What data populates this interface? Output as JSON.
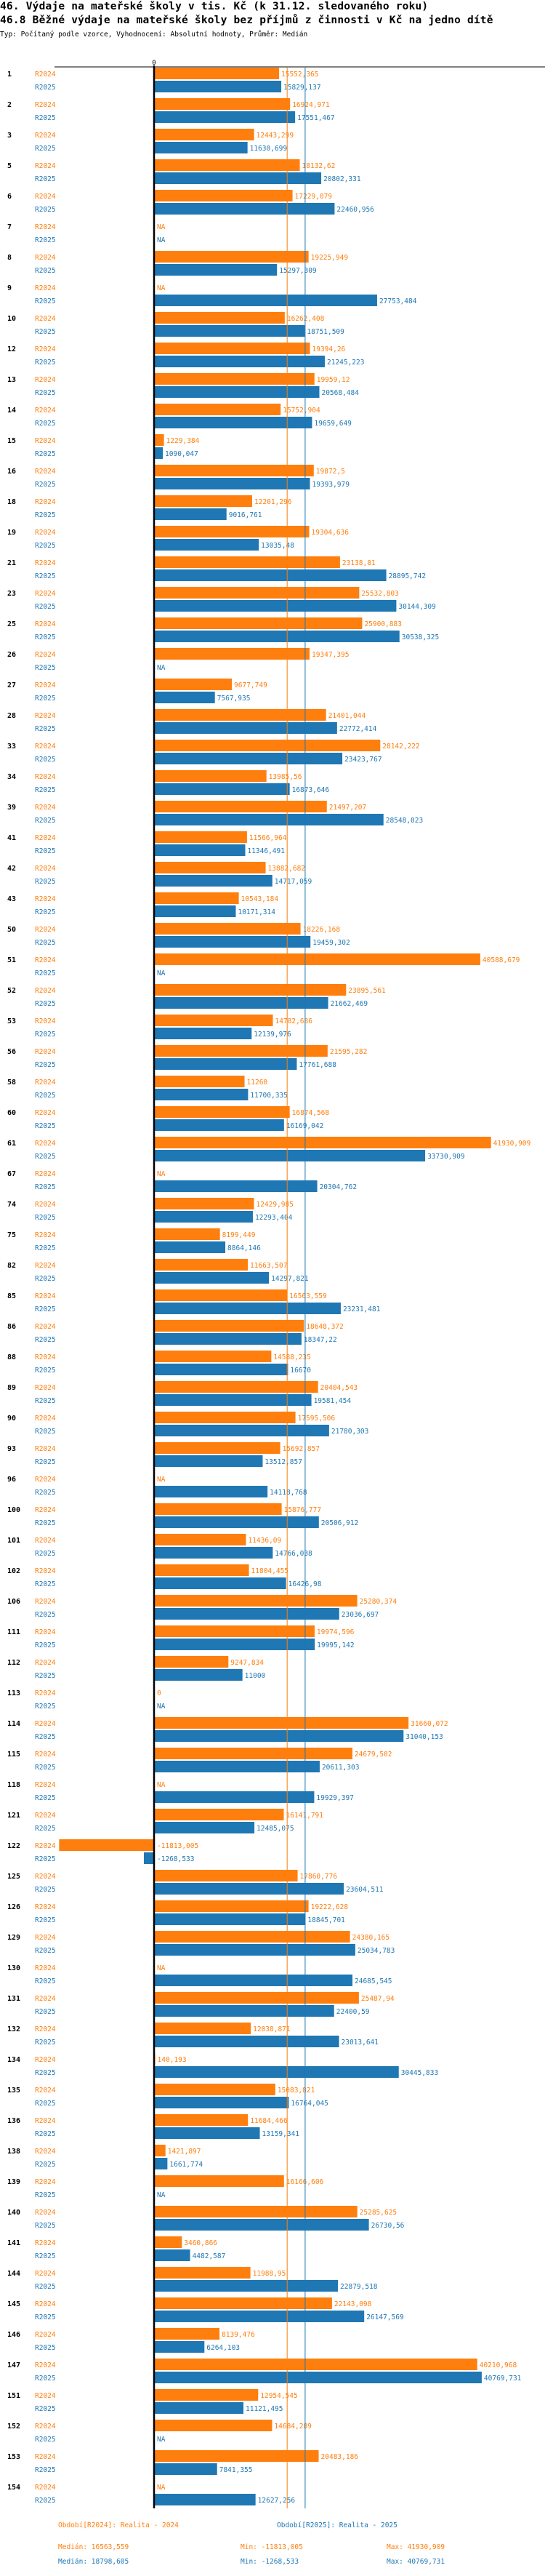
{
  "title": "46. Výdaje na mateřské školy v tis. Kč (k 31.12. sledovaného roku)",
  "subtitle_main": "46.8 Běžné výdaje na mateřské školy bez příjmů z činnosti v Kč na jedno dítě",
  "meta": "Typ: Počítaný podle vzorce, Vyhodnocení: Absolutní hodnoty, Průměr: Medián",
  "colors": {
    "R2024": "#ff7f0e",
    "R2025": "#1f77b4"
  },
  "chart_data": {
    "type": "bar",
    "orientation": "horizontal",
    "title": "46.8 Běžné výdaje na mateřské školy bez příjmů z činnosti v Kč na jedno dítě",
    "xlabel": "",
    "ylabel": "",
    "axis_tick_label": "0",
    "xlim": [
      -11813.005,
      41930.909
    ],
    "grid": false,
    "legend": "bottom",
    "series_names": [
      "R2024",
      "R2025"
    ],
    "categories": [
      "1",
      "2",
      "3",
      "5",
      "6",
      "7",
      "8",
      "9",
      "10",
      "12",
      "13",
      "14",
      "15",
      "16",
      "18",
      "19",
      "21",
      "23",
      "25",
      "26",
      "27",
      "28",
      "33",
      "34",
      "39",
      "41",
      "42",
      "43",
      "50",
      "51",
      "52",
      "53",
      "56",
      "58",
      "60",
      "61",
      "67",
      "74",
      "75",
      "82",
      "85",
      "86",
      "88",
      "89",
      "90",
      "93",
      "96",
      "100",
      "101",
      "102",
      "106",
      "111",
      "112",
      "113",
      "114",
      "115",
      "118",
      "121",
      "122",
      "125",
      "126",
      "129",
      "130",
      "131",
      "132",
      "134",
      "135",
      "136",
      "138",
      "139",
      "140",
      "141",
      "144",
      "145",
      "146",
      "147",
      "151",
      "152",
      "153",
      "154"
    ],
    "series": [
      {
        "name": "R2024",
        "values": [
          "15552,365",
          "16924,971",
          "12443,299",
          "18132,62",
          "17229,079",
          "NA",
          "19225,949",
          "NA",
          "16262,408",
          "19394,26",
          "19959,12",
          "15752,904",
          "1229,384",
          "19872,5",
          "12201,296",
          "19304,636",
          "23138,81",
          "25532,803",
          "25900,883",
          "19347,395",
          "9677,749",
          "21401,044",
          "28142,222",
          "13985,56",
          "21497,207",
          "11566,964",
          "13882,682",
          "10543,184",
          "18226,168",
          "40588,679",
          "23895,561",
          "14782,686",
          "21595,282",
          "11260",
          "16874,568",
          "41930,909",
          "NA",
          "12429,985",
          "8199,449",
          "11663,507",
          "16563,559",
          "18648,372",
          "14588,235",
          "20404,543",
          "17595,506",
          "15692,857",
          "NA",
          "15876,777",
          "11436,09",
          "11804,455",
          "25280,374",
          "19974,596",
          "9247,834",
          "0",
          "31660,072",
          "24679,502",
          "NA",
          "16141,791",
          "-11813,005",
          "17860,776",
          "19222,628",
          "24380,165",
          "NA",
          "25487,94",
          "12038,871",
          "140,193",
          "15083,821",
          "11684,466",
          "1421,897",
          "16166,606",
          "25285,625",
          "3460,866",
          "11988,95",
          "22143,098",
          "8139,476",
          "40210,968",
          "12954,545",
          "14684,289",
          "20483,186",
          "NA"
        ]
      },
      {
        "name": "R2025",
        "values": [
          "15829,137",
          "17551,467",
          "11630,699",
          "20802,331",
          "22460,956",
          "NA",
          "15297,309",
          "27753,484",
          "18751,509",
          "21245,223",
          "20568,484",
          "19659,649",
          "1090,047",
          "19393,979",
          "9016,761",
          "13035,48",
          "28895,742",
          "30144,309",
          "30538,325",
          "NA",
          "7567,935",
          "22772,414",
          "23423,767",
          "16873,646",
          "28548,023",
          "11346,491",
          "14717,059",
          "10171,314",
          "19459,302",
          "NA",
          "21662,469",
          "12139,976",
          "17761,688",
          "11700,335",
          "16169,042",
          "33730,909",
          "20304,762",
          "12293,404",
          "8864,146",
          "14297,821",
          "23231,481",
          "18347,22",
          "16670",
          "19581,454",
          "21780,303",
          "13512,857",
          "14118,768",
          "20506,912",
          "14766,038",
          "16426,98",
          "23036,697",
          "19995,142",
          "11000",
          "NA",
          "31040,153",
          "20611,303",
          "19929,397",
          "12485,075",
          "-1268,533",
          "23604,511",
          "18845,701",
          "25034,783",
          "24685,545",
          "22400,59",
          "23013,641",
          "30445,833",
          "16764,045",
          "13159,341",
          "1661,774",
          "NA",
          "26730,56",
          "4482,587",
          "22879,518",
          "26147,569",
          "6264,103",
          "40769,731",
          "11121,495",
          "NA",
          "7841,355",
          "12627,256"
        ]
      }
    ],
    "reference_lines": [
      {
        "series": "R2024",
        "type": "median",
        "value": 16563.559
      },
      {
        "series": "R2025",
        "type": "median",
        "value": 18798.605
      }
    ],
    "legend_items": [
      {
        "series": "R2024",
        "label": "Období[R2024]: Realita - 2024"
      },
      {
        "series": "R2025",
        "label": "Období[R2025]: Realita - 2025"
      }
    ],
    "stats": [
      {
        "series": "R2024",
        "median": "Medián: 16563,559",
        "min": "Min: -11813,005",
        "max": "Max: 41930,909"
      },
      {
        "series": "R2025",
        "median": "Medián: 18798,605",
        "min": "Min: -1268,533",
        "max": "Max: 40769,731"
      }
    ]
  }
}
